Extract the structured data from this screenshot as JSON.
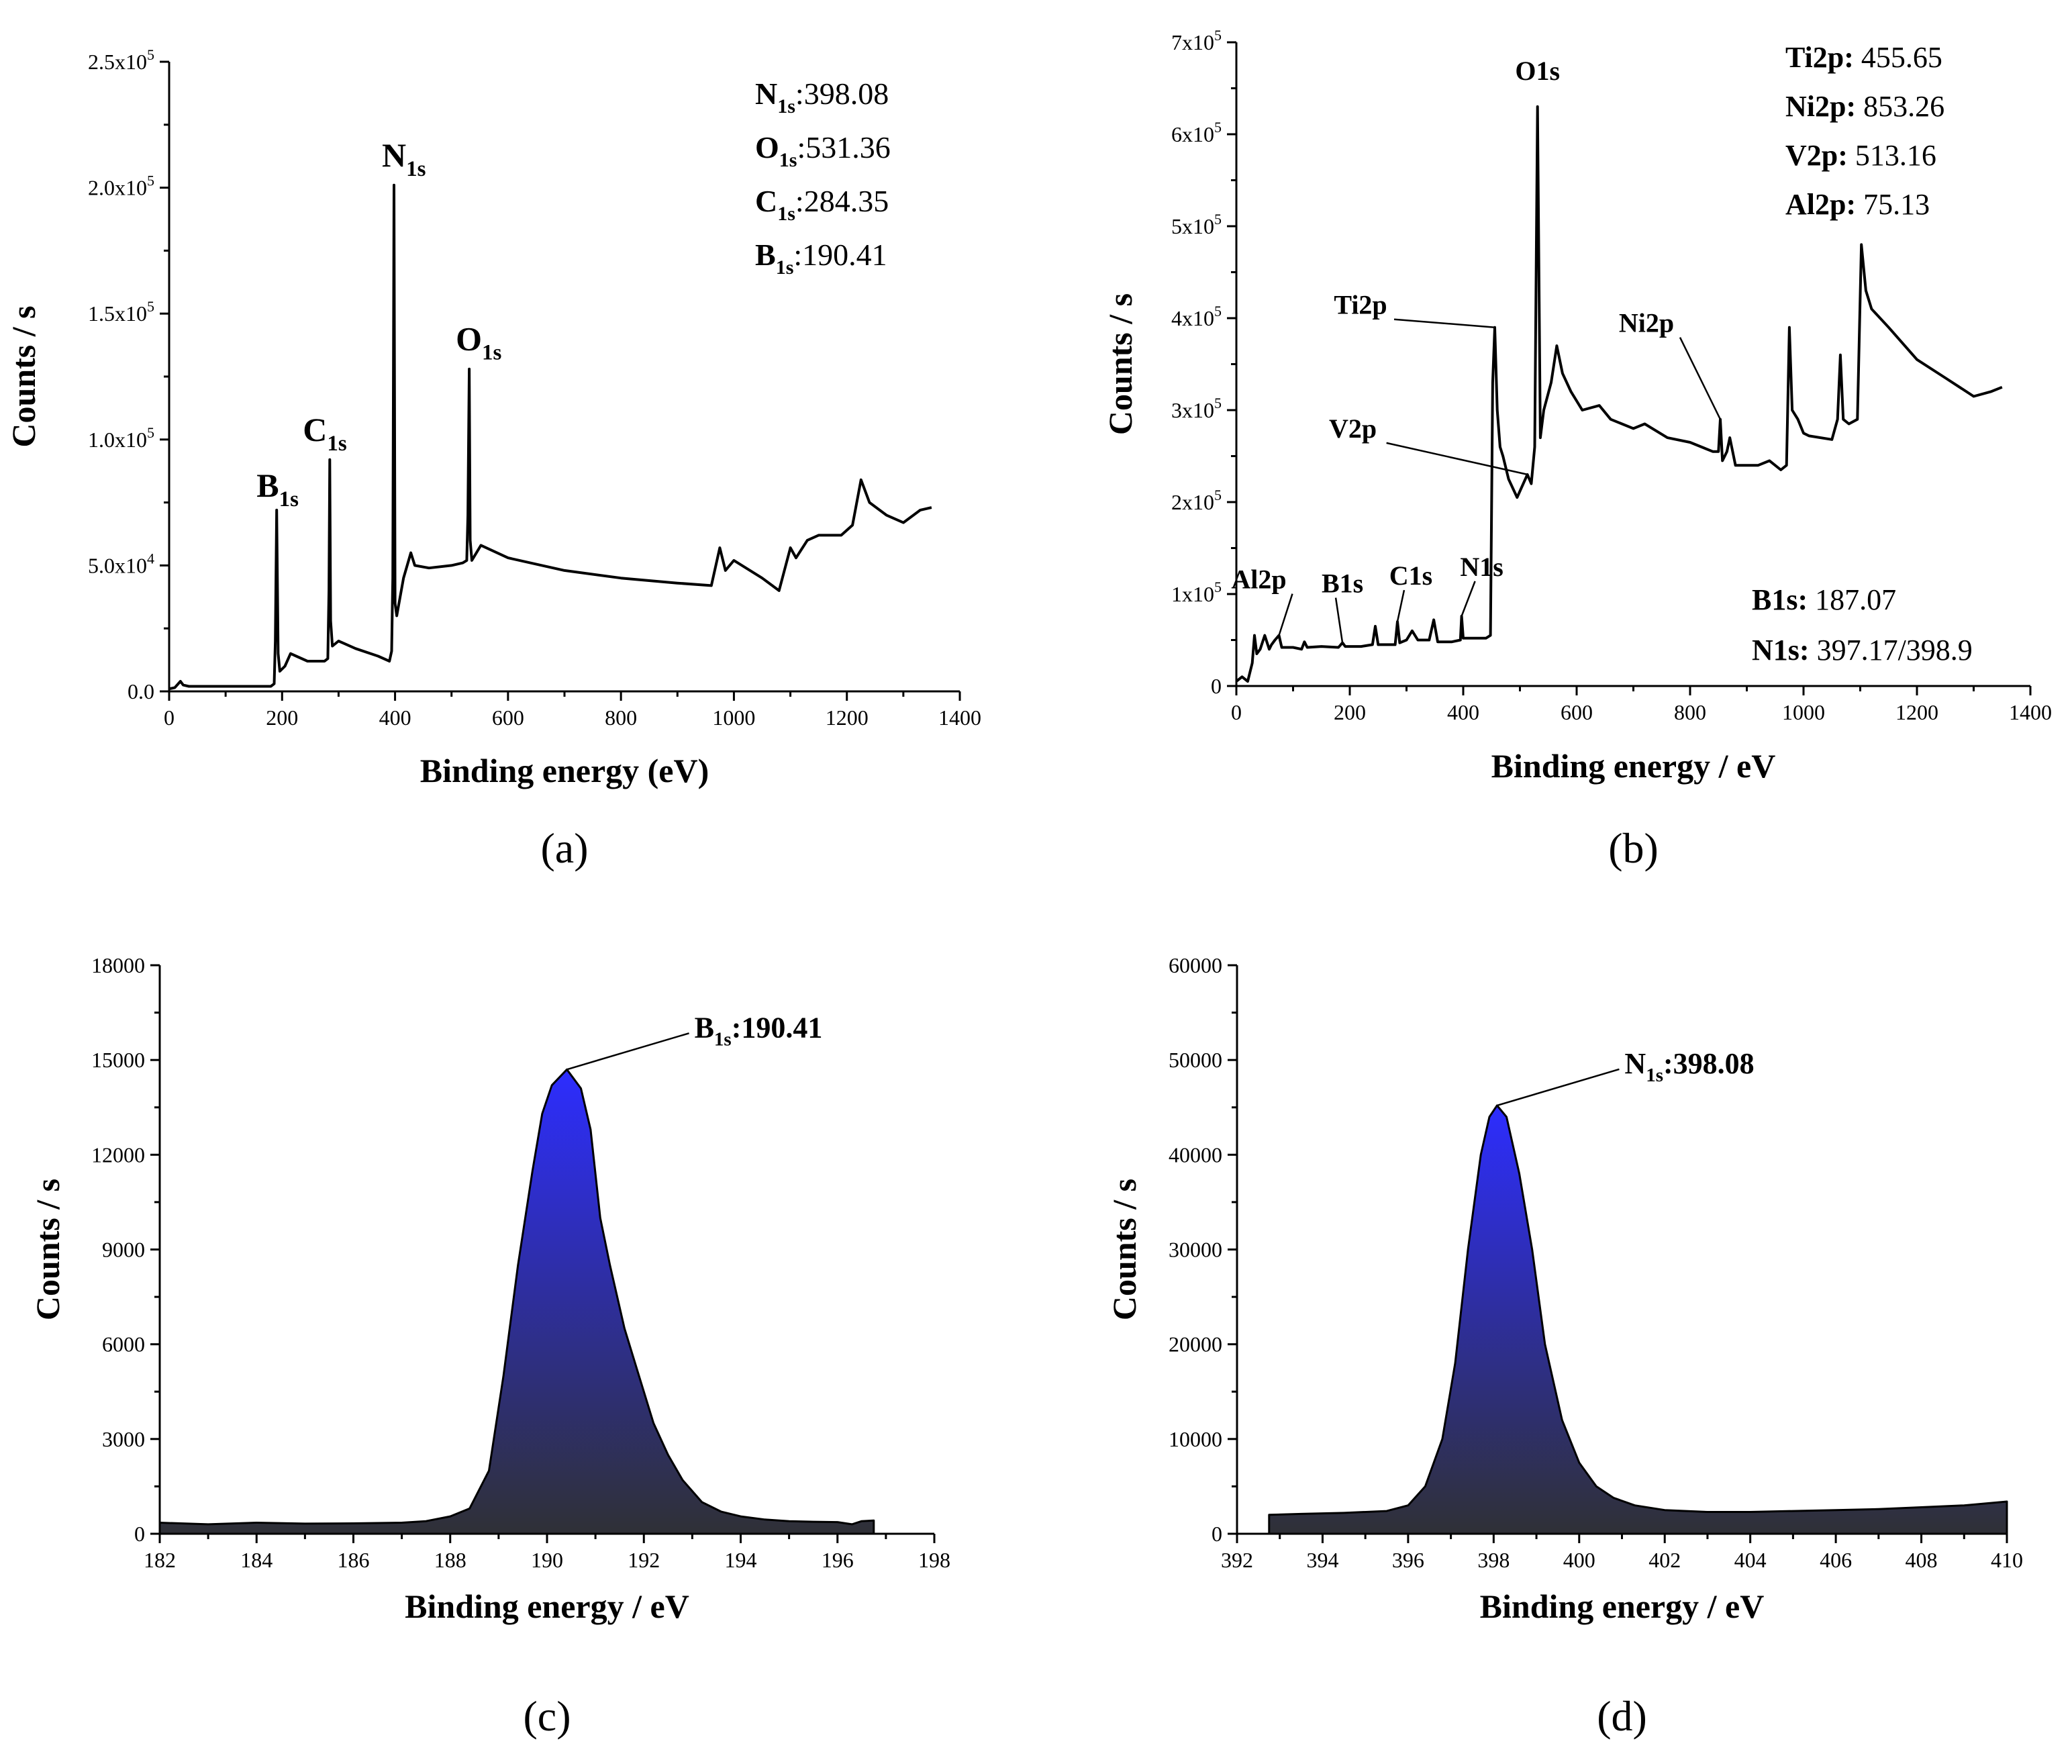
{
  "chart_data": [
    {
      "id": "a",
      "type": "line",
      "panel_label": "(a)",
      "xlabel": "Binding energy (eV)",
      "ylabel": "Counts / s",
      "xlim": [
        0,
        1400
      ],
      "ylim": [
        0,
        250000
      ],
      "x_ticks": [
        "0",
        "200",
        "400",
        "600",
        "800",
        "1000",
        "1200",
        "1400"
      ],
      "y_ticks": [
        "0.0",
        "5.0x10^4",
        "1.0x10^5",
        "1.5x10^5",
        "2.0x10^5",
        "2.5x10^5"
      ],
      "y_tick_values": [
        0,
        50000,
        100000,
        150000,
        200000,
        250000
      ],
      "series": [
        {
          "x": [
            0,
            10,
            20,
            25,
            35,
            50,
            100,
            150,
            180,
            186,
            188,
            190.41,
            193,
            196,
            205,
            215,
            225,
            245,
            275,
            281,
            283,
            284.35,
            286,
            289,
            300,
            330,
            370,
            390,
            394,
            396,
            398.08,
            400,
            403,
            415,
            428,
            435,
            460,
            500,
            520,
            527,
            529,
            531.36,
            533,
            536,
            552,
            600,
            700,
            800,
            900,
            960,
            975,
            985,
            1000,
            1050,
            1080,
            1100,
            1110,
            1130,
            1150,
            1190,
            1210,
            1225,
            1240,
            1270,
            1300,
            1330,
            1350
          ],
          "y": [
            1000,
            1500,
            4000,
            2500,
            2000,
            2000,
            2000,
            2000,
            2000,
            3000,
            20000,
            72000,
            15000,
            8000,
            10000,
            15000,
            14000,
            12000,
            12000,
            13000,
            40000,
            92000,
            28000,
            18000,
            20000,
            17000,
            14000,
            12000,
            16000,
            45000,
            201000,
            35000,
            30000,
            45000,
            55000,
            50000,
            49000,
            50000,
            51000,
            52000,
            70000,
            128000,
            60000,
            52000,
            58000,
            53000,
            48000,
            45000,
            43000,
            42000,
            57000,
            48000,
            52000,
            45000,
            40000,
            57000,
            53000,
            60000,
            62000,
            62000,
            66000,
            84000,
            75000,
            70000,
            67000,
            72000,
            73000
          ]
        }
      ],
      "peak_labels": [
        {
          "main": "B",
          "sub": "1s",
          "x": 190.41,
          "y": 72000
        },
        {
          "main": "C",
          "sub": "1s",
          "x": 284.35,
          "y": 92000
        },
        {
          "main": "N",
          "sub": "1s",
          "x": 398.08,
          "y": 201000
        },
        {
          "main": "O",
          "sub": "1s",
          "x": 531.36,
          "y": 128000
        }
      ],
      "annotations": [
        {
          "el": "N",
          "sub": "1s",
          "val": ":398.08"
        },
        {
          "el": "O",
          "sub": "1s",
          "val": ":531.36"
        },
        {
          "el": "C",
          "sub": "1s",
          "val": ":284.35"
        },
        {
          "el": "B",
          "sub": "1s",
          "val": ":190.41"
        }
      ]
    },
    {
      "id": "b",
      "type": "line",
      "panel_label": "(b)",
      "xlabel": "Binding energy / eV",
      "ylabel": "Counts / s",
      "xlim": [
        0,
        1400
      ],
      "ylim": [
        0,
        700000
      ],
      "x_ticks": [
        "0",
        "200",
        "400",
        "600",
        "800",
        "1000",
        "1200",
        "1400"
      ],
      "y_ticks": [
        "0",
        "1x10^5",
        "2x10^5",
        "3x10^5",
        "4x10^5",
        "5x10^5",
        "6x10^5",
        "7x10^5"
      ],
      "y_tick_values": [
        0,
        100000,
        200000,
        300000,
        400000,
        500000,
        600000,
        700000
      ],
      "series": [
        {
          "x": [
            0,
            10,
            20,
            28,
            32,
            36,
            42,
            50,
            58,
            62,
            68,
            75.13,
            80,
            100,
            115,
            120,
            125,
            150,
            180,
            187.07,
            192,
            220,
            240,
            245,
            250,
            280,
            284,
            288,
            300,
            310,
            320,
            340,
            348,
            355,
            380,
            395,
            397.17,
            400,
            420,
            440,
            448,
            452,
            455.65,
            460,
            465,
            470,
            480,
            495,
            513.16,
            520,
            526,
            531,
            536,
            542,
            555,
            565,
            575,
            590,
            610,
            640,
            660,
            700,
            720,
            760,
            800,
            840,
            850,
            853.26,
            857,
            865,
            870,
            880,
            920,
            940,
            960,
            970,
            975,
            980,
            990,
            1000,
            1010,
            1050,
            1060,
            1065,
            1070,
            1080,
            1095,
            1102,
            1110,
            1120,
            1150,
            1200,
            1250,
            1300,
            1330,
            1350
          ],
          "y": [
            5000,
            10000,
            5000,
            25000,
            55000,
            35000,
            40000,
            55000,
            40000,
            45000,
            50000,
            55000,
            42000,
            42000,
            40000,
            48000,
            42000,
            43000,
            42000,
            47000,
            43000,
            43000,
            45000,
            65000,
            45000,
            45000,
            70000,
            47000,
            50000,
            60000,
            50000,
            50000,
            72000,
            48000,
            48000,
            50000,
            76000,
            52000,
            52000,
            52000,
            55000,
            330000,
            390000,
            300000,
            260000,
            250000,
            225000,
            205000,
            230000,
            220000,
            260000,
            630000,
            270000,
            300000,
            330000,
            370000,
            340000,
            320000,
            300000,
            305000,
            290000,
            280000,
            285000,
            270000,
            265000,
            255000,
            255000,
            290000,
            245000,
            255000,
            270000,
            240000,
            240000,
            245000,
            235000,
            240000,
            390000,
            300000,
            290000,
            275000,
            272000,
            268000,
            290000,
            360000,
            290000,
            285000,
            290000,
            480000,
            430000,
            410000,
            390000,
            355000,
            335000,
            315000,
            320000,
            325000
          ]
        }
      ],
      "peak_labels": [
        {
          "text": "O1s",
          "x": 531,
          "y": 630000,
          "leader": false
        },
        {
          "text": "Ti2p",
          "x": 455.65,
          "y": 390000,
          "leader": true
        },
        {
          "text": "Ni2p",
          "x": 853.26,
          "y": 290000,
          "leader": true
        },
        {
          "text": "V2p",
          "x": 513.16,
          "y": 230000,
          "leader": true
        },
        {
          "text": "Al2p",
          "x": 75.13,
          "y": 55000,
          "leader": true
        },
        {
          "text": "B1s",
          "x": 187.07,
          "y": 47000,
          "leader": true
        },
        {
          "text": "C1s",
          "x": 284,
          "y": 70000,
          "leader": true
        },
        {
          "text": "N1s",
          "x": 397.17,
          "y": 76000,
          "leader": true
        }
      ],
      "annotations_top": [
        {
          "el": "Ti2p:",
          "val": " 455.65"
        },
        {
          "el": "Ni2p:",
          "val": " 853.26"
        },
        {
          "el": "V2p:",
          "val": " 513.16"
        },
        {
          "el": "Al2p:",
          "val": " 75.13"
        }
      ],
      "annotations_bottom": [
        {
          "el": "B1s:",
          "val": " 187.07"
        },
        {
          "el": "N1s:",
          "val": " 397.17/398.9"
        }
      ]
    },
    {
      "id": "c",
      "type": "area",
      "panel_label": "(c)",
      "xlabel": "Binding energy / eV",
      "ylabel": "Counts / s",
      "xlim": [
        182,
        198
      ],
      "ylim": [
        0,
        18000
      ],
      "x_ticks": [
        "182",
        "184",
        "186",
        "188",
        "190",
        "192",
        "194",
        "196",
        "198"
      ],
      "y_ticks": [
        "0",
        "3000",
        "6000",
        "9000",
        "12000",
        "15000",
        "18000"
      ],
      "y_tick_values": [
        0,
        3000,
        6000,
        9000,
        12000,
        15000,
        18000
      ],
      "series": [
        {
          "x": [
            182,
            183,
            184,
            185,
            186,
            187,
            187.5,
            188,
            188.4,
            188.8,
            189.1,
            189.4,
            189.7,
            189.9,
            190.1,
            190.41,
            190.7,
            190.9,
            191.1,
            191.3,
            191.6,
            191.9,
            192.2,
            192.5,
            192.8,
            193.2,
            193.6,
            194,
            194.5,
            195,
            195.5,
            196,
            196.3,
            196.5,
            196.75
          ],
          "y": [
            350,
            300,
            350,
            320,
            330,
            350,
            400,
            550,
            800,
            2000,
            5000,
            8500,
            11500,
            13300,
            14200,
            14700,
            14100,
            12800,
            10000,
            8500,
            6500,
            5000,
            3500,
            2500,
            1700,
            1000,
            700,
            550,
            450,
            400,
            380,
            370,
            300,
            400,
            420
          ]
        }
      ],
      "fill_top": "#2d2dff",
      "fill_bottom": "#2f3036",
      "annotation": {
        "el": "B",
        "sub": "1s",
        "val": ":190.41",
        "x": 190.41,
        "y": 14700
      }
    },
    {
      "id": "d",
      "type": "area",
      "panel_label": "(d)",
      "xlabel": "Binding energy / eV",
      "ylabel": "Counts / s",
      "xlim": [
        392,
        410
      ],
      "ylim": [
        0,
        60000
      ],
      "x_ticks": [
        "392",
        "394",
        "396",
        "398",
        "400",
        "402",
        "404",
        "406",
        "408",
        "410"
      ],
      "y_ticks": [
        "0",
        "10000",
        "20000",
        "30000",
        "40000",
        "50000",
        "60000"
      ],
      "y_tick_values": [
        0,
        10000,
        20000,
        30000,
        40000,
        50000,
        60000
      ],
      "series": [
        {
          "x": [
            392.75,
            393.5,
            394.5,
            395.5,
            396,
            396.4,
            396.8,
            397.1,
            397.4,
            397.7,
            397.9,
            398.08,
            398.3,
            398.6,
            398.9,
            399.2,
            399.6,
            400,
            400.4,
            400.8,
            401.3,
            402,
            403,
            404,
            405,
            406,
            407,
            408,
            409,
            410
          ],
          "y": [
            2000,
            2100,
            2200,
            2400,
            3000,
            5000,
            10000,
            18000,
            30000,
            40000,
            44000,
            45200,
            44000,
            38000,
            30000,
            20000,
            12000,
            7500,
            5000,
            3800,
            3000,
            2500,
            2300,
            2300,
            2400,
            2500,
            2600,
            2800,
            3000,
            3400
          ]
        }
      ],
      "fill_top": "#2d2dff",
      "fill_bottom": "#2f3036",
      "annotation": {
        "el": "N",
        "sub": "1s",
        "val": ":398.08",
        "x": 398.08,
        "y": 45200
      }
    }
  ]
}
